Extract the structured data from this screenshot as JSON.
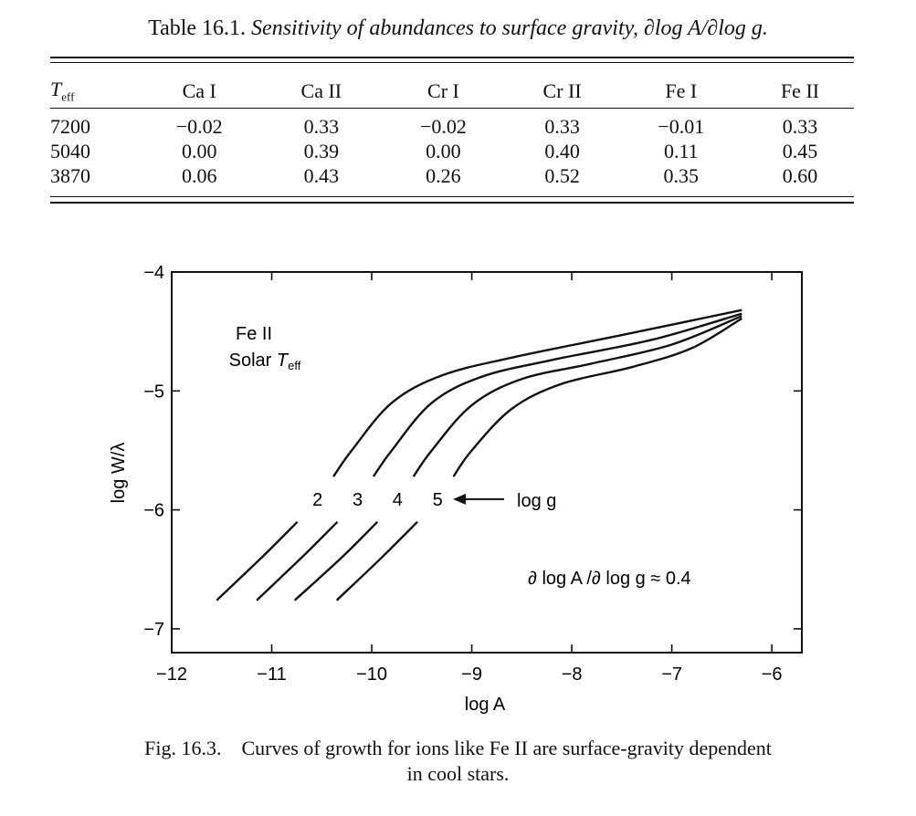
{
  "table": {
    "caption_label": "Table 16.1.",
    "caption_text": "Sensitivity of abundances to surface gravity, ∂log A/∂log g.",
    "headers": {
      "teff_main": "T",
      "teff_sub": "eff",
      "cols": [
        "Ca I",
        "Ca II",
        "Cr I",
        "Cr II",
        "Fe I",
        "Fe II"
      ]
    },
    "rows": [
      [
        "7200",
        "−0.02",
        "0.33",
        "−0.02",
        "0.33",
        "−0.01",
        "0.33"
      ],
      [
        "5040",
        "0.00",
        "0.39",
        "0.00",
        "0.40",
        "0.11",
        "0.45"
      ],
      [
        "3870",
        "0.06",
        "0.43",
        "0.26",
        "0.52",
        "0.35",
        "0.60"
      ]
    ]
  },
  "figure": {
    "caption_label": "Fig. 16.3.",
    "caption_line1": "Curves of growth for ions like Fe II are surface-gravity dependent",
    "caption_line2": "in cool stars."
  },
  "chart_data": {
    "type": "line",
    "xlabel": "log A",
    "ylabel": "log W/λ",
    "xlim": [
      -12,
      -5.7
    ],
    "ylim": [
      -7.2,
      -4
    ],
    "x_ticks": [
      -12,
      -11,
      -10,
      -9,
      -8,
      -7,
      -6
    ],
    "x_tick_labels": [
      "−12",
      "−11",
      "−10",
      "−9",
      "−8",
      "−7",
      "−6"
    ],
    "y_ticks": [
      -4,
      -5,
      -6,
      -7
    ],
    "y_tick_labels": [
      "−4",
      "−5",
      "−6",
      "−7"
    ],
    "grid": false,
    "annotations": {
      "ion": "Fe II",
      "teff_label": "Solar",
      "teff_main": "T",
      "teff_sub": "eff",
      "arrow_label": "log g",
      "relation": "∂ log A /∂ log g ≈ 0.4"
    },
    "series": [
      {
        "label": "2",
        "points": [
          [
            -11.55,
            -6.76
          ],
          [
            -11.1,
            -6.4
          ],
          [
            -10.6,
            -5.98
          ],
          [
            -10.2,
            -5.5
          ],
          [
            -9.8,
            -5.1
          ],
          [
            -9.3,
            -4.87
          ],
          [
            -8.6,
            -4.72
          ],
          [
            -7.5,
            -4.53
          ],
          [
            -6.3,
            -4.32
          ]
        ]
      },
      {
        "label": "3",
        "points": [
          [
            -11.15,
            -6.76
          ],
          [
            -10.7,
            -6.4
          ],
          [
            -10.2,
            -5.98
          ],
          [
            -9.8,
            -5.5
          ],
          [
            -9.4,
            -5.1
          ],
          [
            -8.9,
            -4.88
          ],
          [
            -8.2,
            -4.74
          ],
          [
            -7.2,
            -4.57
          ],
          [
            -6.3,
            -4.35
          ]
        ]
      },
      {
        "label": "4",
        "points": [
          [
            -10.77,
            -6.76
          ],
          [
            -10.3,
            -6.4
          ],
          [
            -9.8,
            -5.98
          ],
          [
            -9.4,
            -5.5
          ],
          [
            -9.0,
            -5.12
          ],
          [
            -8.5,
            -4.9
          ],
          [
            -7.8,
            -4.77
          ],
          [
            -7.0,
            -4.61
          ],
          [
            -6.3,
            -4.37
          ]
        ]
      },
      {
        "label": "5",
        "points": [
          [
            -10.35,
            -6.76
          ],
          [
            -9.9,
            -6.4
          ],
          [
            -9.4,
            -5.98
          ],
          [
            -9.0,
            -5.5
          ],
          [
            -8.6,
            -5.15
          ],
          [
            -8.1,
            -4.94
          ],
          [
            -7.4,
            -4.8
          ],
          [
            -6.8,
            -4.64
          ],
          [
            -6.3,
            -4.39
          ]
        ]
      }
    ]
  }
}
